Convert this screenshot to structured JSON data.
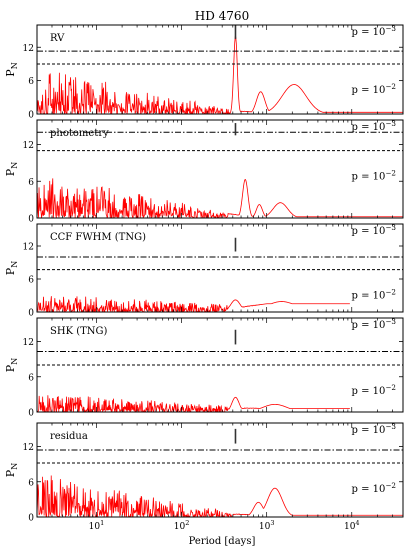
{
  "chart_data": {
    "type": "line",
    "title": "HD 4760",
    "xlabel": "Period [days]",
    "ylabel": "P_N",
    "x_scale": "log",
    "xlim": [
      2,
      40000
    ],
    "x_ticks": [
      10,
      100,
      1000,
      10000
    ],
    "x_tick_labels": [
      [
        "10",
        "1"
      ],
      [
        "10",
        "2"
      ],
      [
        "10",
        "3"
      ],
      [
        "10",
        "4"
      ]
    ],
    "line_color": "#ff0000",
    "marker_period": 430,
    "fap_labels": [
      {
        "base": "p = 10",
        "exp": "−3",
        "style": "dashdot"
      },
      {
        "base": "p = 10",
        "exp": "−2",
        "style": "dashed"
      }
    ],
    "panels": [
      {
        "label": "RV",
        "ylim": [
          0,
          16
        ],
        "y_ticks": [
          0,
          6,
          12
        ],
        "fap_levels": [
          11.3,
          9.0
        ],
        "marker_range": [
          13.5,
          16
        ],
        "noise": {
          "max": 8.5,
          "min": 0.8,
          "decay_to": 400
        },
        "peaks": [
          [
            430,
            14.0,
            0.03
          ],
          [
            850,
            4.0,
            0.07
          ],
          [
            2100,
            5.3,
            0.2
          ]
        ],
        "tail": 0.3,
        "tail_end": 40000
      },
      {
        "label": "photometry",
        "ylim": [
          0,
          16
        ],
        "y_ticks": [
          0,
          6,
          12
        ],
        "fap_levels": [
          14.0,
          11.0
        ],
        "marker_range": [
          13.5,
          15.5
        ],
        "noise": {
          "max": 7.3,
          "min": 1.0,
          "decay_to": 350
        },
        "peaks": [
          [
            560,
            6.3,
            0.045
          ],
          [
            820,
            2.2,
            0.05
          ],
          [
            1450,
            2.5,
            0.12
          ]
        ],
        "tail": 0.2,
        "tail_end": 40000
      },
      {
        "label": "CCF FWHM (TNG)",
        "ylim": [
          0,
          16
        ],
        "y_ticks": [
          0,
          6,
          12
        ],
        "fap_levels": [
          10.0,
          7.7
        ],
        "marker_range": [
          11.0,
          13.5
        ],
        "noise": {
          "max": 3.6,
          "min": 1.2,
          "decay_to": 450
        },
        "peaks": [
          [
            430,
            2.2,
            0.08
          ],
          [
            1500,
            1.9,
            0.25
          ]
        ],
        "tail": 1.5,
        "tail_end": 9500
      },
      {
        "label": "SHK (TNG)",
        "ylim": [
          0,
          16
        ],
        "y_ticks": [
          0,
          6,
          12
        ],
        "fap_levels": [
          10.3,
          8.0
        ],
        "marker_range": [
          11.5,
          14.0
        ],
        "noise": {
          "max": 3.3,
          "min": 1.0,
          "decay_to": 450
        },
        "peaks": [
          [
            430,
            2.5,
            0.06
          ],
          [
            1250,
            1.3,
            0.2
          ]
        ],
        "tail": 0.6,
        "tail_end": 9500
      },
      {
        "label": "residua",
        "ylim": [
          0,
          16
        ],
        "y_ticks": [
          0,
          6,
          12
        ],
        "fap_levels": [
          11.4,
          9.2
        ],
        "marker_range": [
          12.5,
          15.0
        ],
        "noise": {
          "max": 7.8,
          "min": 0.7,
          "decay_to": 400
        },
        "peaks": [
          [
            800,
            2.5,
            0.08
          ],
          [
            1250,
            4.9,
            0.12
          ]
        ],
        "tail": 0.3,
        "tail_end": 40000
      }
    ]
  }
}
